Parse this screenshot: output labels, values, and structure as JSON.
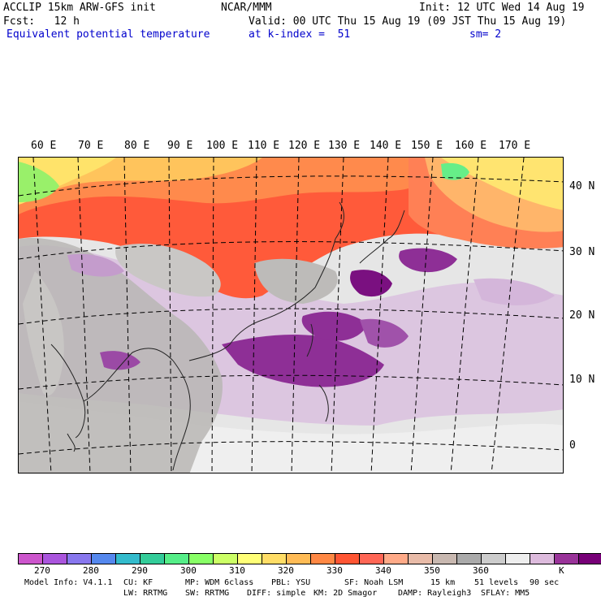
{
  "header": {
    "line1_left": "ACCLIP 15km ARW-GFS init",
    "line1_center": "NCAR/MMM",
    "line1_right": "Init: 12 UTC Wed 14 Aug 19",
    "line2_left": "Fcst:   12 h",
    "line2_right": "Valid: 00 UTC Thu 15 Aug 19 (09 JST Thu 15 Aug 19)",
    "line3_field": "Equivalent potential temperature",
    "line3_level": "at k-index =  51",
    "line3_smooth": "sm= 2"
  },
  "map": {
    "lon_labels": [
      "60 E",
      "70 E",
      "80 E",
      "90 E",
      "100 E",
      "110 E",
      "120 E",
      "130 E",
      "140 E",
      "150 E",
      "160 E",
      "170 E"
    ],
    "lat_labels": [
      "40 N",
      "30 N",
      "20 N",
      "10 N",
      "0"
    ]
  },
  "colorbar": {
    "colors": [
      "#cc55cc",
      "#aa55dd",
      "#8877ee",
      "#5588ee",
      "#33bbcc",
      "#33cc99",
      "#55ee88",
      "#88ff66",
      "#ccff66",
      "#ffff77",
      "#ffdd66",
      "#ffbb55",
      "#ff8844",
      "#ff5533",
      "#ff6655",
      "#ffaa88",
      "#e8bba8",
      "#c8b8b0",
      "#aaaaaa",
      "#cccccc",
      "#eeeeee",
      "#ddbbdd",
      "#993399",
      "#770077"
    ],
    "tick_labels": [
      "270",
      "280",
      "290",
      "300",
      "310",
      "320",
      "330",
      "340",
      "350",
      "360"
    ],
    "unit": "K"
  },
  "footer": {
    "model_info_label": "Model Info: V4.1.1",
    "cu": "CU: KF",
    "mp": "MP: WDM 6class",
    "pbl": "PBL: YSU",
    "sf": "SF: Noah LSM",
    "res": "15 km",
    "levels": "51 levels",
    "dt": "90 sec",
    "lw": "LW: RRTMG",
    "sw": "SW: RRTMG",
    "diff": "DIFF: simple",
    "km": "KM: 2D Smagor",
    "damp": "DAMP: Rayleigh3",
    "sflay": "SFLAY: MM5"
  }
}
